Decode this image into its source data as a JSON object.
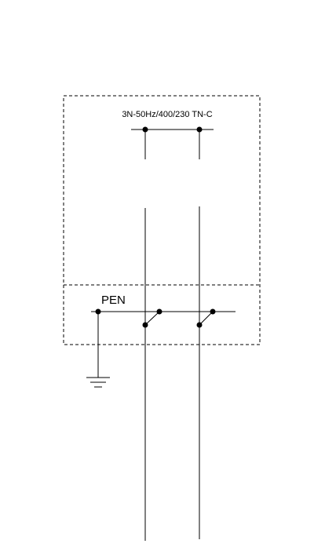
{
  "diagram": {
    "supply_label": "3N-50Hz/400/230 TN-C",
    "pen_label": "PEN"
  },
  "colors": {
    "stroke": "#000000",
    "background": "#ffffff"
  }
}
